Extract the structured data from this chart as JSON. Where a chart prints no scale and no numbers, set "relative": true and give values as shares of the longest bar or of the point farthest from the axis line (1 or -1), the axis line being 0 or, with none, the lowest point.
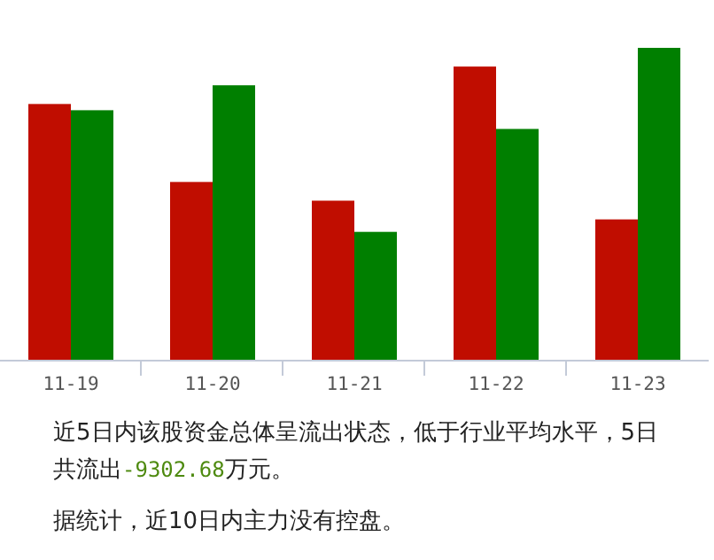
{
  "chart_data": {
    "type": "bar",
    "relative": true,
    "categories": [
      "11-19",
      "11-20",
      "11-21",
      "11-22",
      "11-23"
    ],
    "series": [
      {
        "color": "#c00d00",
        "values": [
          0.82,
          0.57,
          0.51,
          0.94,
          0.45
        ]
      },
      {
        "color": "#007f00",
        "values": [
          0.8,
          0.88,
          0.41,
          0.74,
          1
        ]
      }
    ],
    "annotations": [
      "近5日内该股资金总体呈流出状态，低于行业平均水平，5日共流出-9302.68万元。",
      "据统计，近10日内主力没有控盘。"
    ]
  }
}
